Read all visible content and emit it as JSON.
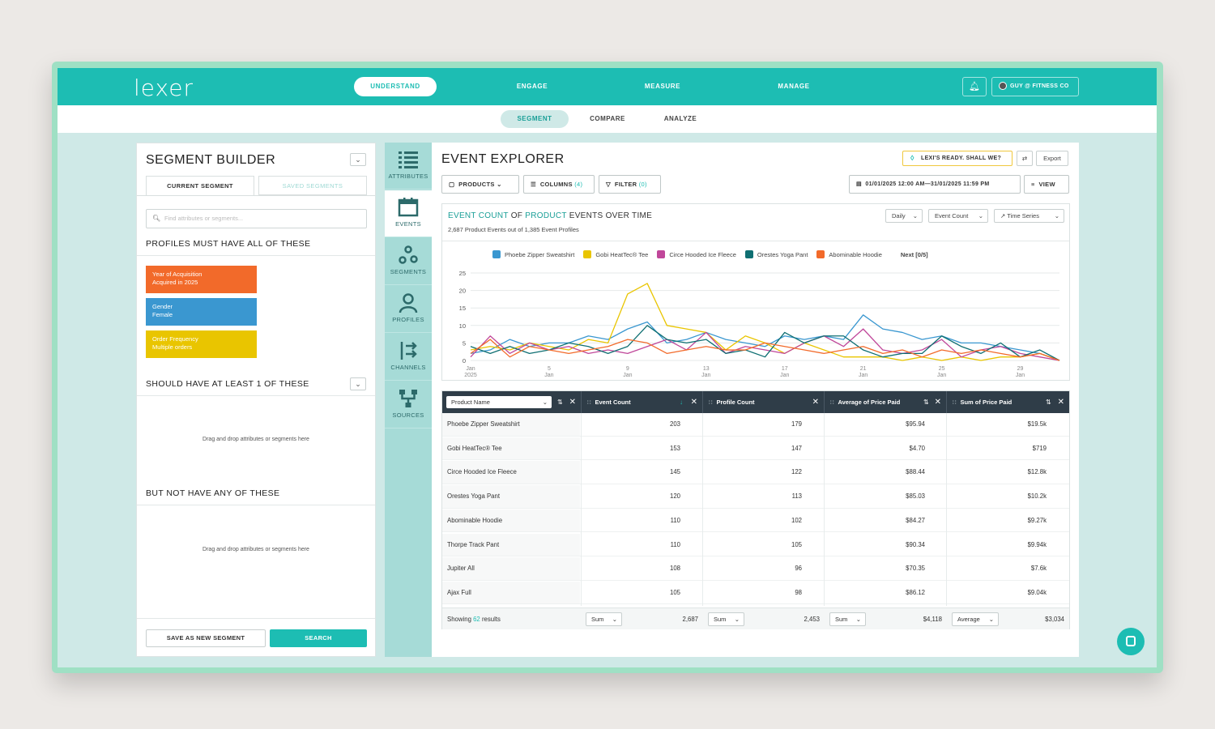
{
  "brand": {
    "logo": "lexer",
    "accent": "#1dbdb3"
  },
  "nav": {
    "items": [
      "UNDERSTAND",
      "ENGAGE",
      "MEASURE",
      "MANAGE"
    ],
    "active": "UNDERSTAND",
    "user": "GUY @ FITNESS CO"
  },
  "subnav": {
    "items": [
      "SEGMENT",
      "COMPARE",
      "ANALYZE"
    ],
    "active": "SEGMENT"
  },
  "segment_builder": {
    "title": "SEGMENT BUILDER",
    "tabs": [
      "CURRENT SEGMENT",
      "SAVED SEGMENTS"
    ],
    "search_placeholder": "Find attributes or segments...",
    "must_title": "PROFILES MUST HAVE ALL OF THESE",
    "chips": [
      {
        "label": "Year of Acquisition",
        "value": "Acquired in 2025",
        "color": "#f26a2a"
      },
      {
        "label": "Gender",
        "value": "Female",
        "color": "#3a97d0"
      },
      {
        "label": "Order Frequency",
        "value": "Multiple orders",
        "color": "#e9c500"
      }
    ],
    "should_title": "SHOULD HAVE AT LEAST 1 OF THESE",
    "should_hint": "Drag and drop attributes or segments here",
    "not_title": "BUT NOT HAVE ANY OF THESE",
    "not_hint": "Drag and drop attributes or segments here",
    "save_button": "SAVE AS NEW SEGMENT",
    "search_button": "SEARCH"
  },
  "rail": {
    "items": [
      "ATTRIBUTES",
      "EVENTS",
      "SEGMENTS",
      "PROFILES",
      "CHANNELS",
      "SOURCES"
    ],
    "active": "EVENTS"
  },
  "explorer": {
    "title": "EVENT EXPLORER",
    "lexi": "LEXI'S READY. SHALL WE?",
    "export": "Export",
    "toolbar": {
      "products": "PRODUCTS",
      "columns": "COLUMNS",
      "columns_count": "(4)",
      "filter": "FILTER",
      "filter_count": "(0)",
      "date_range": "01/01/2025 12:00 AM—31/01/2025 11:59 PM",
      "view": "VIEW"
    },
    "chart_card": {
      "title_a": "EVENT COUNT",
      "title_b": " OF ",
      "title_c": "PRODUCT",
      "title_d": " EVENTS OVER TIME",
      "subtitle": "2,687 Product Events out of 1,385 Event Profiles",
      "interval": "Daily",
      "metric": "Event Count",
      "chart_kind": "Time Series",
      "next": "Next [0/5]"
    }
  },
  "chart_data": {
    "type": "line",
    "title": "EVENT COUNT OF PRODUCT EVENTS OVER TIME",
    "xlabel": "",
    "ylabel": "",
    "ylim": [
      0,
      25
    ],
    "yticks": [
      0,
      5,
      10,
      15,
      20,
      25
    ],
    "x": [
      1,
      2,
      3,
      4,
      5,
      6,
      7,
      8,
      9,
      10,
      11,
      12,
      13,
      14,
      15,
      16,
      17,
      18,
      19,
      20,
      21,
      22,
      23,
      24,
      25,
      26,
      27,
      28,
      29,
      30,
      31
    ],
    "xtick_labels": [
      {
        "x": 1,
        "line1": "Jan",
        "line2": "2025"
      },
      {
        "x": 5,
        "line1": "5",
        "line2": "Jan"
      },
      {
        "x": 9,
        "line1": "9",
        "line2": "Jan"
      },
      {
        "x": 13,
        "line1": "13",
        "line2": "Jan"
      },
      {
        "x": 17,
        "line1": "17",
        "line2": "Jan"
      },
      {
        "x": 21,
        "line1": "21",
        "line2": "Jan"
      },
      {
        "x": 25,
        "line1": "25",
        "line2": "Jan"
      },
      {
        "x": 29,
        "line1": "29",
        "line2": "Jan"
      }
    ],
    "grid": true,
    "series": [
      {
        "name": "Phoebe Zipper Sweatshirt",
        "color": "#3a97d0",
        "values": [
          2,
          3,
          6,
          4,
          5,
          5,
          7,
          6,
          9,
          11,
          5,
          6,
          8,
          6,
          5,
          4,
          7,
          6,
          7,
          6,
          13,
          9,
          8,
          6,
          7,
          5,
          5,
          4,
          3,
          2,
          0
        ]
      },
      {
        "name": "Gobi HeatTec&reg; Tee",
        "color": "#e9c500",
        "values": [
          3,
          4,
          3,
          5,
          4,
          3,
          6,
          5,
          19,
          22,
          10,
          9,
          8,
          3,
          7,
          5,
          2,
          5,
          3,
          1,
          1,
          1,
          0,
          1,
          0,
          1,
          0,
          1,
          1,
          2,
          0
        ]
      },
      {
        "name": "Circe Hooded Ice Fleece",
        "color": "#c0479a",
        "values": [
          1,
          7,
          2,
          5,
          3,
          4,
          2,
          3,
          2,
          4,
          6,
          3,
          8,
          2,
          4,
          3,
          2,
          5,
          7,
          4,
          9,
          3,
          2,
          3,
          6,
          1,
          3,
          4,
          2,
          1,
          0
        ]
      },
      {
        "name": "Orestes Yoga Pant",
        "color": "#0f6f72",
        "values": [
          4,
          2,
          4,
          2,
          3,
          5,
          4,
          2,
          4,
          10,
          6,
          5,
          6,
          2,
          3,
          1,
          8,
          5,
          7,
          7,
          3,
          1,
          2,
          2,
          7,
          4,
          2,
          5,
          1,
          3,
          0
        ]
      },
      {
        "name": "Abominable Hoodie",
        "color": "#f26a2a",
        "values": [
          2,
          6,
          1,
          4,
          3,
          2,
          3,
          4,
          6,
          5,
          2,
          3,
          4,
          3,
          3,
          5,
          4,
          3,
          2,
          3,
          4,
          2,
          3,
          1,
          3,
          2,
          3,
          2,
          1,
          2,
          0
        ]
      }
    ]
  },
  "table": {
    "columns": [
      "Product Name",
      "Event Count",
      "Profile Count",
      "Average of Price Paid",
      "Sum of Price Paid"
    ],
    "rows": [
      [
        "Phoebe Zipper Sweatshirt",
        "203",
        "179",
        "$95.94",
        "$19.5k"
      ],
      [
        "Gobi HeatTec&reg; Tee",
        "153",
        "147",
        "$4.70",
        "$719"
      ],
      [
        "Circe Hooded Ice Fleece",
        "145",
        "122",
        "$88.44",
        "$12.8k"
      ],
      [
        "Orestes Yoga Pant",
        "120",
        "113",
        "$85.03",
        "$10.2k"
      ],
      [
        "Abominable Hoodie",
        "110",
        "102",
        "$84.27",
        "$9.27k"
      ],
      [
        "Thorpe Track Pant",
        "110",
        "105",
        "$90.34",
        "$9.94k"
      ],
      [
        "Jupiter All",
        "108",
        "96",
        "$70.35",
        "$7.6k"
      ],
      [
        "Ajax Full",
        "105",
        "98",
        "$86.12",
        "$9.04k"
      ]
    ],
    "footer": {
      "showing_prefix": "Showing",
      "showing_count": "62",
      "showing_suffix": "results",
      "aggregates": [
        {
          "fn": "Sum",
          "value": "2,687"
        },
        {
          "fn": "Sum",
          "value": "2,453"
        },
        {
          "fn": "Sum",
          "value": "$4,118"
        },
        {
          "fn": "Average",
          "value": "$3,034"
        }
      ]
    }
  }
}
